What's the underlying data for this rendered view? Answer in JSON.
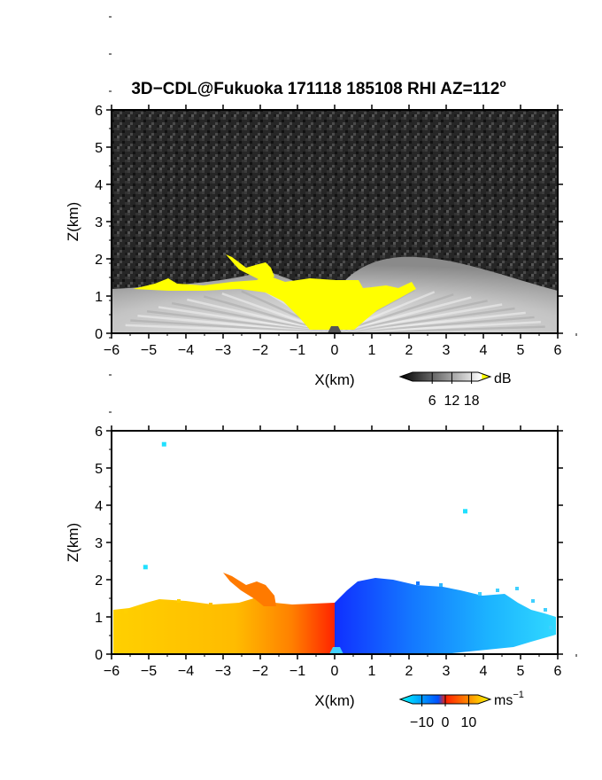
{
  "chart_data": {
    "title_main": "3D−CDL@Fukuoka 171118 185108 RHI AZ=112",
    "title_sup": "o",
    "panels": [
      {
        "id": "snr",
        "type": "heatmap",
        "field": "signal intensity",
        "xlabel": "X(km)",
        "ylabel": "Z(km)",
        "xlim": [
          -6,
          6
        ],
        "ylim": [
          0,
          6
        ],
        "xticks": [
          "−6",
          "−5",
          "−4",
          "−3",
          "−2",
          "−1",
          "0",
          "1",
          "2",
          "3",
          "4",
          "5",
          "6"
        ],
        "yticks": [
          "0",
          "1",
          "2",
          "3",
          "4",
          "5",
          "6"
        ],
        "colorbar": {
          "unit": "dB",
          "unit_sup": "",
          "ticks": [
            6,
            12,
            18
          ],
          "tick_labels": [
            "6",
            "12",
            "18"
          ],
          "range": [
            0,
            20
          ],
          "colors": [
            "#000000",
            "#ffffff",
            "#ffff00"
          ]
        },
        "echo_top_km": [
          [
            -6,
            1.2
          ],
          [
            -5,
            1.2
          ],
          [
            -4,
            1.3
          ],
          [
            -3,
            1.6
          ],
          [
            -2.5,
            2.1
          ],
          [
            -2,
            1.7
          ],
          [
            -1,
            1.4
          ],
          [
            0,
            1.4
          ],
          [
            0.5,
            1.6
          ],
          [
            1,
            1.9
          ],
          [
            2,
            1.9
          ],
          [
            3,
            1.5
          ],
          [
            4,
            1.3
          ],
          [
            5,
            1.2
          ],
          [
            6,
            1.2
          ]
        ]
      },
      {
        "id": "velocity",
        "type": "heatmap",
        "field": "radial velocity",
        "xlabel": "X(km)",
        "ylabel": "Z(km)",
        "xlim": [
          -6,
          6
        ],
        "ylim": [
          0,
          6
        ],
        "xticks": [
          "−6",
          "−5",
          "−4",
          "−3",
          "−2",
          "−1",
          "0",
          "1",
          "2",
          "3",
          "4",
          "5",
          "6"
        ],
        "yticks": [
          "0",
          "1",
          "2",
          "3",
          "4",
          "5",
          "6"
        ],
        "colorbar": {
          "unit": "ms",
          "unit_sup": "−1",
          "ticks": [
            -10,
            0,
            10
          ],
          "tick_labels": [
            "−10",
            "0",
            "10"
          ],
          "range": [
            -14,
            14
          ],
          "colors": [
            "#00ffff",
            "#0040ff",
            "#ff2000",
            "#ffff00"
          ]
        },
        "echo_top_km": [
          [
            -6,
            1.25
          ],
          [
            -5.3,
            1.4
          ],
          [
            -4.5,
            1.45
          ],
          [
            -3.5,
            1.4
          ],
          [
            -3,
            2.1
          ],
          [
            -2,
            1.8
          ],
          [
            -1,
            1.35
          ],
          [
            0,
            1.35
          ],
          [
            0.5,
            1.7
          ],
          [
            1,
            2.0
          ],
          [
            2,
            1.9
          ],
          [
            3,
            1.7
          ],
          [
            4,
            1.5
          ],
          [
            5,
            1.3
          ],
          [
            6,
            1.1
          ]
        ],
        "isolated_echoes": [
          [
            -4.6,
            5.65
          ],
          [
            3.5,
            3.85
          ],
          [
            -5.1,
            2.35
          ]
        ]
      }
    ]
  }
}
